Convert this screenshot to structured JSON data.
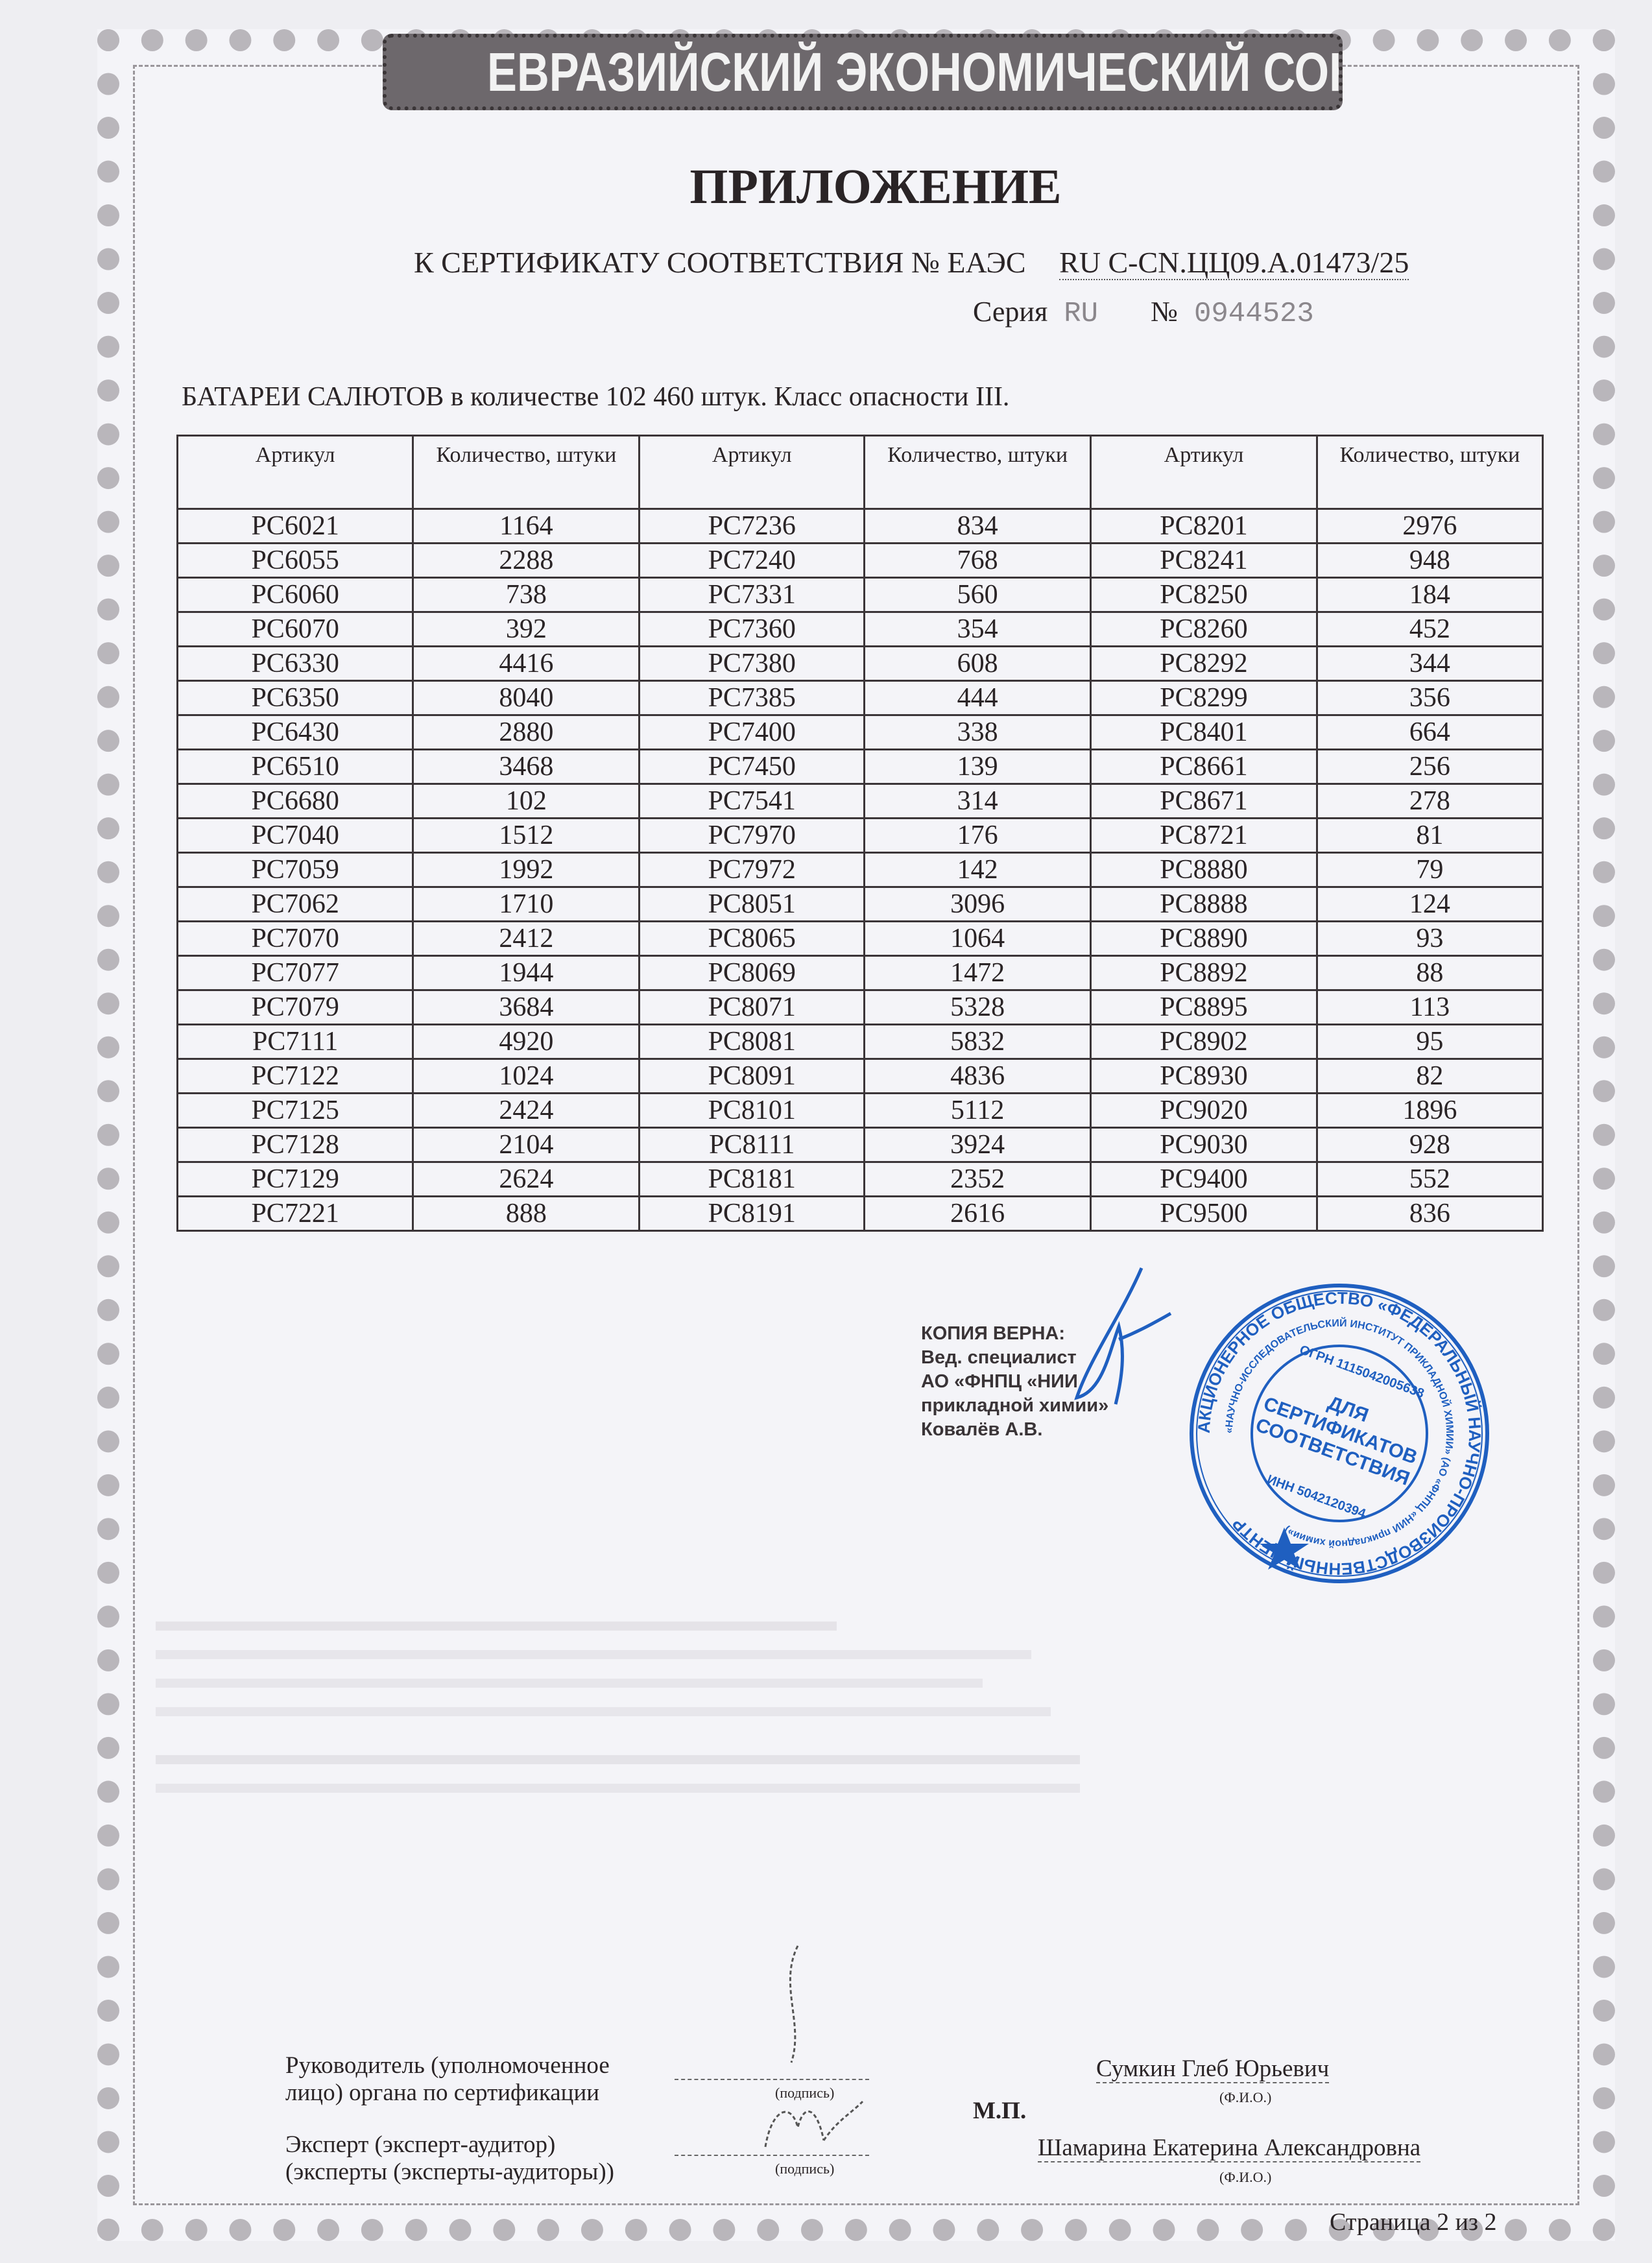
{
  "banner": "ЕВРАЗИЙСКИЙ ЭКОНОМИЧЕСКИЙ СОЮЗ",
  "title": "ПРИЛОЖЕНИЕ",
  "certificate": {
    "prefix": "К СЕРТИФИКАТУ СООТВЕТСТВИЯ № ЕАЭС",
    "number": "RU C-CN.ЦЦ09.А.01473/25",
    "series_label": "Серия",
    "series_value": "RU",
    "form_number_label": "№",
    "form_number": "0944523"
  },
  "lead": "БАТАРЕИ САЛЮТОВ в количестве 102 460 штук. Класс опасности III.",
  "table": {
    "headers": [
      "Артикул",
      "Количество, штуки",
      "Артикул",
      "Количество, штуки",
      "Артикул",
      "Количество, штуки"
    ],
    "rows": [
      [
        "PC6021",
        "1164",
        "PC7236",
        "834",
        "PC8201",
        "2976"
      ],
      [
        "PC6055",
        "2288",
        "PC7240",
        "768",
        "PC8241",
        "948"
      ],
      [
        "PC6060",
        "738",
        "PC7331",
        "560",
        "PC8250",
        "184"
      ],
      [
        "PC6070",
        "392",
        "PC7360",
        "354",
        "PC8260",
        "452"
      ],
      [
        "PC6330",
        "4416",
        "PC7380",
        "608",
        "PC8292",
        "344"
      ],
      [
        "PC6350",
        "8040",
        "PC7385",
        "444",
        "PC8299",
        "356"
      ],
      [
        "PC6430",
        "2880",
        "PC7400",
        "338",
        "PC8401",
        "664"
      ],
      [
        "PC6510",
        "3468",
        "PC7450",
        "139",
        "PC8661",
        "256"
      ],
      [
        "PC6680",
        "102",
        "PC7541",
        "314",
        "PC8671",
        "278"
      ],
      [
        "PC7040",
        "1512",
        "PC7970",
        "176",
        "PC8721",
        "81"
      ],
      [
        "PC7059",
        "1992",
        "PC7972",
        "142",
        "PC8880",
        "79"
      ],
      [
        "PC7062",
        "1710",
        "PC8051",
        "3096",
        "PC8888",
        "124"
      ],
      [
        "PC7070",
        "2412",
        "PC8065",
        "1064",
        "PC8890",
        "93"
      ],
      [
        "PC7077",
        "1944",
        "PC8069",
        "1472",
        "PC8892",
        "88"
      ],
      [
        "PC7079",
        "3684",
        "PC8071",
        "5328",
        "PC8895",
        "113"
      ],
      [
        "PC7111",
        "4920",
        "PC8081",
        "5832",
        "PC8902",
        "95"
      ],
      [
        "PC7122",
        "1024",
        "PC8091",
        "4836",
        "PC8930",
        "82"
      ],
      [
        "PC7125",
        "2424",
        "PC8101",
        "5112",
        "PC9020",
        "1896"
      ],
      [
        "PC7128",
        "2104",
        "PC8111",
        "3924",
        "PC9030",
        "928"
      ],
      [
        "PC7129",
        "2624",
        "PC8181",
        "2352",
        "PC9400",
        "552"
      ],
      [
        "PC7221",
        "888",
        "PC8191",
        "2616",
        "PC9500",
        "836"
      ]
    ]
  },
  "copy_certified": {
    "line1": "КОПИЯ ВЕРНА:",
    "line2": "Вед. специалист",
    "line3": "АО «ФНПЦ «НИИ",
    "line4": "прикладной химии»",
    "line5": "Ковалёв А.В."
  },
  "stamp": {
    "outer_text": "АКЦИОНЕРНОЕ ОБЩЕСТВО «ФЕДЕРАЛЬНЫЙ НАУЧНО-ПРОИЗВОДСТВЕННЫЙ ЦЕНТР",
    "middle_text": "«НАУЧНО-ИССЛЕДОВАТЕЛЬСКИЙ ИНСТИТУТ ПРИКЛАДНОЙ ХИМИИ» (АО «ФНПЦ «НИИ прикладной химии»)",
    "ogrn": "ОГРН 1115042005638",
    "inn": "ИНН 5042120394",
    "center_line1": "ДЛЯ",
    "center_line2": "СЕРТИФИКАТОВ",
    "center_line3": "СООТВЕТСТВИЯ",
    "color": "#1f5fc0"
  },
  "signatures": {
    "head_label_1": "Руководитель (уполномоченное",
    "head_label_2": "лицо) органа по сертификации",
    "signature_caption": "(подпись)",
    "head_name": "Сумкин Глеб Юрьевич",
    "name_caption": "(Ф.И.О.)",
    "seal_label": "М.П.",
    "expert_label_1": "Эксперт (эксперт-аудитор)",
    "expert_label_2": "(эксперты (эксперты-аудиторы))",
    "expert_name": "Шамарина Екатерина Александровна"
  },
  "page_number": "Страница 2 из 2"
}
